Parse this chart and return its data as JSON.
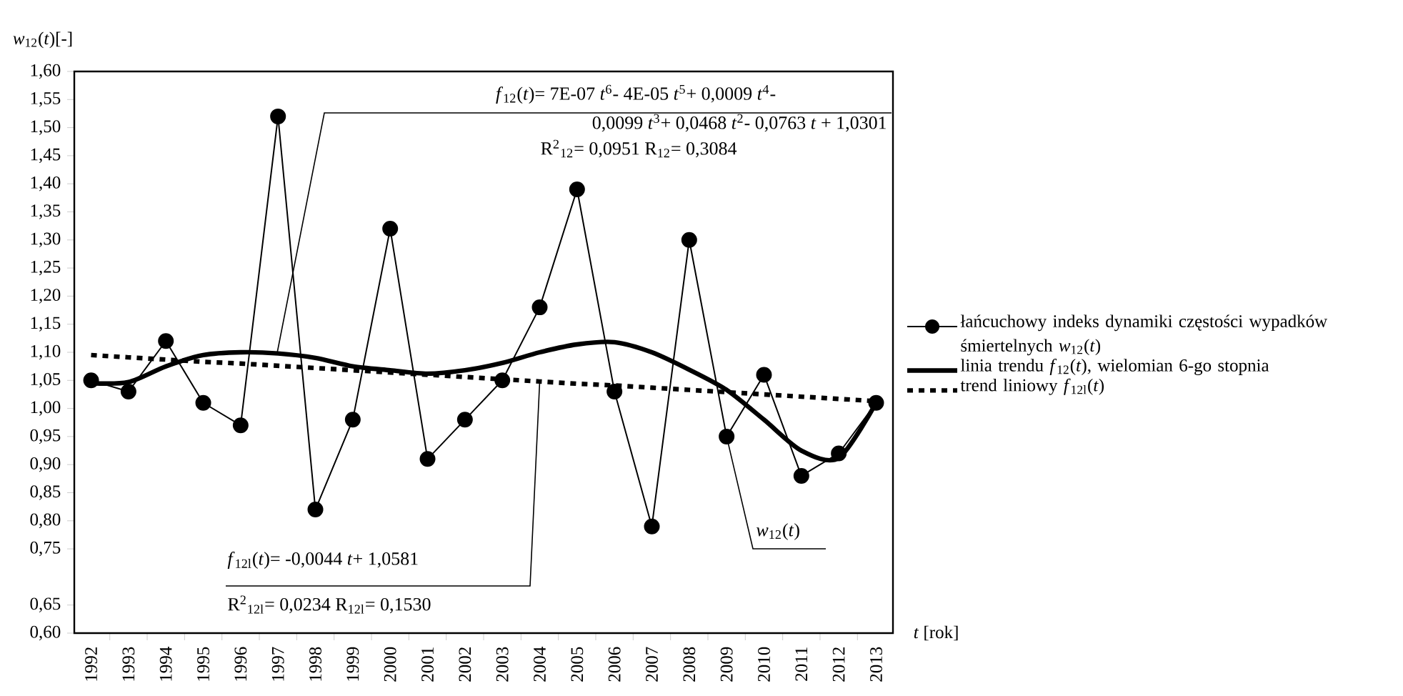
{
  "chart_data": {
    "type": "line",
    "ylabel": "*w*$_{12}$(*t*)[-]",
    "xlabel": "*t* [rok]",
    "categories": [
      "1992",
      "1993",
      "1994",
      "1995",
      "1996",
      "1997",
      "1998",
      "1999",
      "2000",
      "2001",
      "2002",
      "2003",
      "2004",
      "2005",
      "2006",
      "2007",
      "2008",
      "2009",
      "2010",
      "2011",
      "2012",
      "2013"
    ],
    "series": [
      {
        "name": "łańcuchowy indeks dynamiki częstości wypadków śmiertelnych *w*$_{12}$(*t*)",
        "color": "#000000",
        "marker": "circle",
        "line_style": "solid",
        "values": [
          1.05,
          1.03,
          1.12,
          1.01,
          0.97,
          1.52,
          0.82,
          0.98,
          1.32,
          0.91,
          0.98,
          1.05,
          1.18,
          1.39,
          1.03,
          0.79,
          1.3,
          0.95,
          1.06,
          0.88,
          0.92,
          1.01
        ]
      },
      {
        "name": "linia trendu *f*$_{12}$(*t*), wielomian 6-go stopnia",
        "color": "#000000",
        "marker": "none",
        "line_style": "solid",
        "values": [
          1.045,
          1.047,
          1.075,
          1.095,
          1.1,
          1.098,
          1.09,
          1.075,
          1.068,
          1.062,
          1.068,
          1.081,
          1.1,
          1.114,
          1.118,
          1.1,
          1.069,
          1.033,
          0.98,
          0.925,
          0.912,
          1.01
        ]
      },
      {
        "name": "trend liniowy *f*$_{12l}$(*t*)",
        "color": "#000000",
        "marker": "none",
        "line_style": "dotted",
        "values": [
          1.095,
          1.091,
          1.087,
          1.083,
          1.08,
          1.076,
          1.072,
          1.068,
          1.064,
          1.06,
          1.056,
          1.052,
          1.048,
          1.044,
          1.041,
          1.037,
          1.033,
          1.029,
          1.025,
          1.021,
          1.017,
          1.013
        ]
      }
    ],
    "ylim": [
      0.6,
      1.6
    ],
    "yticks": [
      {
        "value": 1.6,
        "label": "1,60"
      },
      {
        "value": 1.55,
        "label": "1,55"
      },
      {
        "value": 1.5,
        "label": "1,50"
      },
      {
        "value": 1.45,
        "label": "1,45"
      },
      {
        "value": 1.4,
        "label": "1,40"
      },
      {
        "value": 1.35,
        "label": "1,35"
      },
      {
        "value": 1.3,
        "label": "1,30"
      },
      {
        "value": 1.25,
        "label": "1,25"
      },
      {
        "value": 1.2,
        "label": "1,20"
      },
      {
        "value": 1.15,
        "label": "1,15"
      },
      {
        "value": 1.1,
        "label": "1,10"
      },
      {
        "value": 1.05,
        "label": "1,05"
      },
      {
        "value": 1.0,
        "label": "1,00"
      },
      {
        "value": 0.95,
        "label": "0,95"
      },
      {
        "value": 0.9,
        "label": "0,90"
      },
      {
        "value": 0.85,
        "label": "0,85"
      },
      {
        "value": 0.8,
        "label": "0,80"
      },
      {
        "value": 0.75,
        "label": "0,75"
      },
      {
        "value": 0.65,
        "label": "0,65"
      },
      {
        "value": 0.6,
        "label": "0,60"
      }
    ],
    "annotations": [
      "*f*$_{12}$(*t*)= 7E-07 *t*$^{6}$- 4E-05 *t*$^{5}$+ 0,0009 *t*$^{4}$-",
      "0,0099 *t*$^{3}$+ 0,0468 *t*$^{2}$- 0,0763 *t* + 1,0301",
      "R$^{2}$$_{12}$= 0,0951   R$_{12}$= 0,3084",
      {
        "text": "*f*$_{12l}$(*t*)= -0,0044 *t*+ 1,0581",
        "x": "2004",
        "y": 1.048
      },
      "R$^{2}$$_{12l}$= 0,0234  R$_{12l}$= 0,1530",
      {
        "text": "*w*$_{12}$(*t*)",
        "x": "2009",
        "y": 0.95
      }
    ],
    "grid": false,
    "legend": "right"
  }
}
